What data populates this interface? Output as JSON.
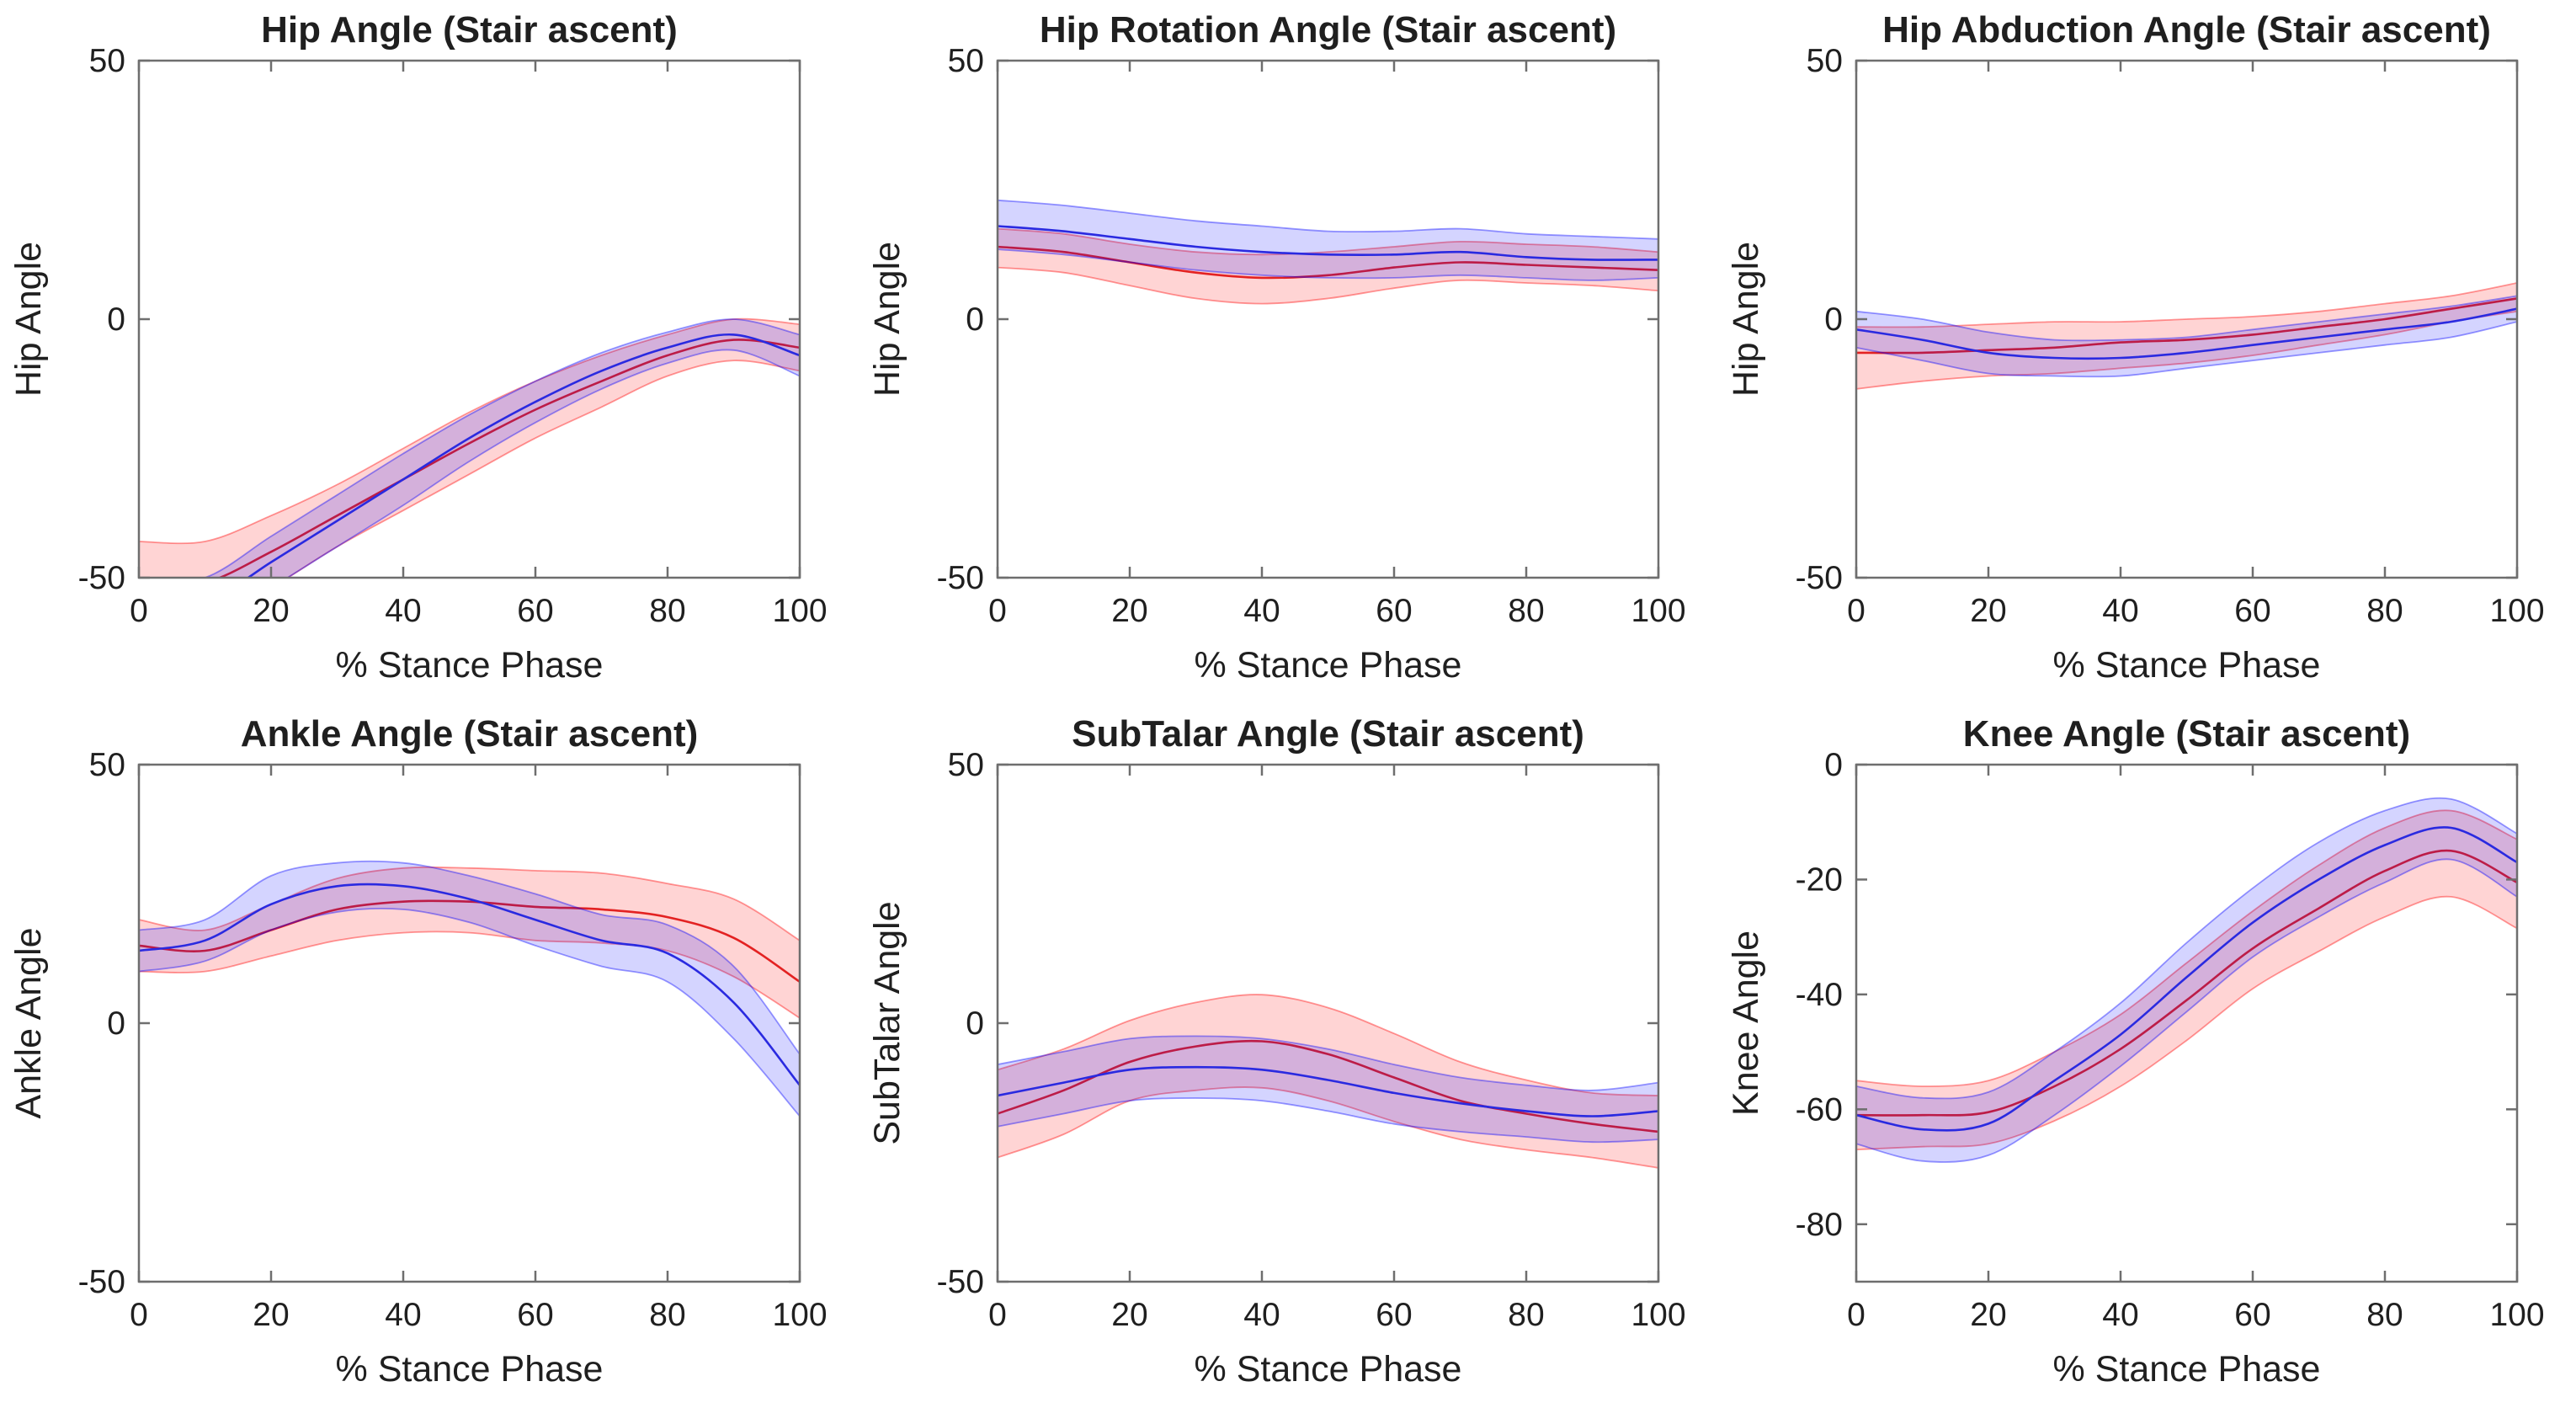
{
  "figure": {
    "background": "#ffffff",
    "axis_color": "#6e6e6e",
    "text_color": "#1f1f1f"
  },
  "chart_data": [
    {
      "id": "hip-angle",
      "type": "line",
      "title": "Hip Angle (Stair ascent)",
      "xlabel": "% Stance Phase",
      "ylabel": "Hip Angle",
      "xlim": [
        0,
        100
      ],
      "ylim": [
        -50,
        50
      ],
      "xticks": [
        0,
        20,
        40,
        60,
        80,
        100
      ],
      "yticks": [
        -50,
        0,
        50
      ],
      "grid": false,
      "legend": null,
      "x": [
        0,
        10,
        20,
        30,
        40,
        50,
        60,
        70,
        80,
        90,
        100
      ],
      "series": [
        {
          "name": "red",
          "line_color": "#e32222",
          "band_color": "#ff0000",
          "mean": [
            -52,
            -51,
            -45,
            -38,
            -31,
            -24,
            -17.5,
            -12,
            -7,
            -4,
            -5.5
          ],
          "upper": [
            -43,
            -43,
            -38,
            -32,
            -25,
            -18,
            -12,
            -7,
            -3,
            0,
            -1
          ],
          "lower": [
            -61,
            -59,
            -52,
            -44,
            -37,
            -30,
            -23,
            -17,
            -11,
            -8,
            -10
          ]
        },
        {
          "name": "blue",
          "line_color": "#2a2ae0",
          "band_color": "#0000ff",
          "mean": [
            -57,
            -55,
            -47,
            -39,
            -31,
            -23,
            -16,
            -10,
            -5.5,
            -3,
            -7
          ],
          "upper": [
            -51,
            -50,
            -42,
            -34,
            -26,
            -18.5,
            -12,
            -6.5,
            -2.5,
            0,
            -3
          ],
          "lower": [
            -63,
            -60,
            -52,
            -44,
            -36,
            -27.5,
            -20,
            -13.5,
            -8.5,
            -6,
            -11
          ]
        }
      ]
    },
    {
      "id": "hip-rotation-angle",
      "type": "line",
      "title": "Hip Rotation Angle (Stair ascent)",
      "xlabel": "% Stance Phase",
      "ylabel": "Hip Angle",
      "xlim": [
        0,
        100
      ],
      "ylim": [
        -50,
        50
      ],
      "xticks": [
        0,
        20,
        40,
        60,
        80,
        100
      ],
      "yticks": [
        -50,
        0,
        50
      ],
      "grid": false,
      "legend": null,
      "x": [
        0,
        10,
        20,
        30,
        40,
        50,
        60,
        70,
        80,
        90,
        100
      ],
      "series": [
        {
          "name": "red",
          "line_color": "#e32222",
          "band_color": "#ff0000",
          "mean": [
            14,
            13,
            11,
            9,
            8,
            8.5,
            10,
            11,
            10.5,
            10,
            9.5
          ],
          "upper": [
            17.5,
            16.5,
            14.5,
            13,
            12.5,
            13,
            14,
            15,
            14.5,
            14,
            13
          ],
          "lower": [
            10,
            9,
            6.5,
            4,
            3,
            4,
            6,
            7.5,
            7,
            6.5,
            5.5
          ]
        },
        {
          "name": "blue",
          "line_color": "#2a2ae0",
          "band_color": "#0000ff",
          "mean": [
            18,
            17,
            15.5,
            14,
            13,
            12.5,
            12.5,
            13,
            12,
            11.5,
            11.5
          ],
          "upper": [
            23,
            22,
            20.5,
            19,
            18,
            17,
            17,
            17.5,
            16.5,
            16,
            15.5
          ],
          "lower": [
            13.5,
            12.5,
            11,
            9.5,
            8.5,
            8,
            8,
            8.5,
            8,
            7.5,
            8
          ]
        }
      ]
    },
    {
      "id": "hip-abduction-angle",
      "type": "line",
      "title": "Hip Abduction Angle (Stair ascent)",
      "xlabel": "% Stance Phase",
      "ylabel": "Hip Angle",
      "xlim": [
        0,
        100
      ],
      "ylim": [
        -50,
        50
      ],
      "xticks": [
        0,
        20,
        40,
        60,
        80,
        100
      ],
      "yticks": [
        -50,
        0,
        50
      ],
      "grid": false,
      "legend": null,
      "x": [
        0,
        10,
        20,
        30,
        40,
        50,
        60,
        70,
        80,
        90,
        100
      ],
      "series": [
        {
          "name": "red",
          "line_color": "#e32222",
          "band_color": "#ff0000",
          "mean": [
            -6.5,
            -6.5,
            -6,
            -5.5,
            -4.5,
            -4,
            -3,
            -1.5,
            0,
            2,
            4
          ],
          "upper": [
            -1.5,
            -1.5,
            -1,
            -0.5,
            -0.5,
            0,
            0.5,
            1.5,
            3,
            4.5,
            7
          ],
          "lower": [
            -13.5,
            -12,
            -11,
            -10.5,
            -9.5,
            -8.5,
            -7,
            -5,
            -3,
            -0.5,
            1.5
          ]
        },
        {
          "name": "blue",
          "line_color": "#2a2ae0",
          "band_color": "#0000ff",
          "mean": [
            -2,
            -4,
            -6.5,
            -7.5,
            -7.5,
            -6.5,
            -5,
            -3.5,
            -2,
            -0.5,
            2
          ],
          "upper": [
            1.5,
            0,
            -2.5,
            -4,
            -4,
            -3.5,
            -2,
            -0.5,
            1,
            2.5,
            4.5
          ],
          "lower": [
            -5.5,
            -8,
            -10.5,
            -11,
            -11,
            -9.5,
            -8,
            -6.5,
            -5,
            -3.5,
            -0.5
          ]
        }
      ]
    },
    {
      "id": "ankle-angle",
      "type": "line",
      "title": "Ankle Angle (Stair ascent)",
      "xlabel": "% Stance Phase",
      "ylabel": "Ankle Angle",
      "xlim": [
        0,
        100
      ],
      "ylim": [
        -50,
        50
      ],
      "xticks": [
        0,
        20,
        40,
        60,
        80,
        100
      ],
      "yticks": [
        -50,
        0,
        50
      ],
      "grid": false,
      "legend": null,
      "x": [
        0,
        10,
        20,
        30,
        40,
        50,
        60,
        70,
        80,
        90,
        100
      ],
      "series": [
        {
          "name": "red",
          "line_color": "#e32222",
          "band_color": "#ff0000",
          "mean": [
            15,
            14,
            18,
            22,
            23.5,
            23.5,
            22.5,
            22,
            20.5,
            16.5,
            8
          ],
          "upper": [
            20,
            18,
            23,
            28,
            30,
            30,
            29.5,
            29,
            27,
            24,
            16
          ],
          "lower": [
            10,
            10,
            13,
            16,
            17.5,
            17.5,
            16,
            15.5,
            14,
            9,
            1
          ]
        },
        {
          "name": "blue",
          "line_color": "#2a2ae0",
          "band_color": "#0000ff",
          "mean": [
            14,
            16,
            23,
            26.5,
            26.5,
            24,
            20,
            16,
            13.5,
            4,
            -12
          ],
          "upper": [
            18,
            20,
            28.5,
            31,
            31,
            28.5,
            25,
            21,
            19,
            11,
            -6
          ],
          "lower": [
            10,
            12,
            18,
            21.5,
            22,
            19.5,
            15,
            11,
            8,
            -3,
            -18
          ]
        }
      ]
    },
    {
      "id": "subtalar-angle",
      "type": "line",
      "title": "SubTalar Angle (Stair ascent)",
      "xlabel": "% Stance Phase",
      "ylabel": "SubTalar Angle",
      "xlim": [
        0,
        100
      ],
      "ylim": [
        -50,
        50
      ],
      "xticks": [
        0,
        20,
        40,
        60,
        80,
        100
      ],
      "yticks": [
        -50,
        0,
        50
      ],
      "grid": false,
      "legend": null,
      "x": [
        0,
        10,
        20,
        30,
        40,
        50,
        60,
        70,
        80,
        90,
        100
      ],
      "series": [
        {
          "name": "red",
          "line_color": "#e32222",
          "band_color": "#ff0000",
          "mean": [
            -17.5,
            -13,
            -7.5,
            -4.5,
            -3.5,
            -6,
            -10.5,
            -15,
            -17.5,
            -19.5,
            -21
          ],
          "upper": [
            -9,
            -5,
            0.5,
            4,
            5.5,
            3,
            -2,
            -7.5,
            -11,
            -13.5,
            -14
          ],
          "lower": [
            -26,
            -21.5,
            -15,
            -13,
            -12.5,
            -15,
            -19,
            -22.5,
            -24.5,
            -26,
            -28
          ]
        },
        {
          "name": "blue",
          "line_color": "#2a2ae0",
          "band_color": "#0000ff",
          "mean": [
            -14,
            -11.5,
            -9,
            -8.5,
            -9,
            -11,
            -13.5,
            -15.5,
            -17,
            -18,
            -17
          ],
          "upper": [
            -8,
            -5.5,
            -3,
            -2.5,
            -3,
            -5,
            -8,
            -10.5,
            -12,
            -13,
            -11.5
          ],
          "lower": [
            -20,
            -17.5,
            -15,
            -14.5,
            -15,
            -17,
            -19.5,
            -21,
            -22,
            -23,
            -22.5
          ]
        }
      ]
    },
    {
      "id": "knee-angle",
      "type": "line",
      "title": "Knee Angle (Stair ascent)",
      "xlabel": "% Stance Phase",
      "ylabel": "Knee Angle",
      "xlim": [
        0,
        100
      ],
      "ylim": [
        -90,
        0
      ],
      "xticks": [
        0,
        20,
        40,
        60,
        80,
        100
      ],
      "yticks": [
        0,
        -20,
        -40,
        -60,
        -80
      ],
      "grid": false,
      "legend": null,
      "x": [
        0,
        10,
        20,
        30,
        40,
        50,
        60,
        70,
        80,
        90,
        100
      ],
      "series": [
        {
          "name": "red",
          "line_color": "#e32222",
          "band_color": "#ff0000",
          "mean": [
            -61,
            -61,
            -60.5,
            -56,
            -49.5,
            -41,
            -32,
            -25,
            -18.5,
            -15,
            -20.5
          ],
          "upper": [
            -55,
            -56,
            -55,
            -50,
            -43.5,
            -34.5,
            -25.5,
            -17.5,
            -11,
            -8,
            -13
          ],
          "lower": [
            -67,
            -66.5,
            -66,
            -62,
            -56,
            -48,
            -39,
            -32.5,
            -26.5,
            -23,
            -28.5
          ]
        },
        {
          "name": "blue",
          "line_color": "#2a2ae0",
          "band_color": "#0000ff",
          "mean": [
            -61,
            -63.5,
            -62.5,
            -55,
            -47,
            -37,
            -27.5,
            -20,
            -14,
            -11,
            -17
          ],
          "upper": [
            -56,
            -58,
            -57,
            -50,
            -41.5,
            -31,
            -21.5,
            -13.5,
            -8,
            -6,
            -12
          ],
          "lower": [
            -66,
            -69,
            -68,
            -61,
            -52.5,
            -43,
            -33.5,
            -26.5,
            -20.5,
            -16.5,
            -23
          ]
        }
      ]
    }
  ]
}
